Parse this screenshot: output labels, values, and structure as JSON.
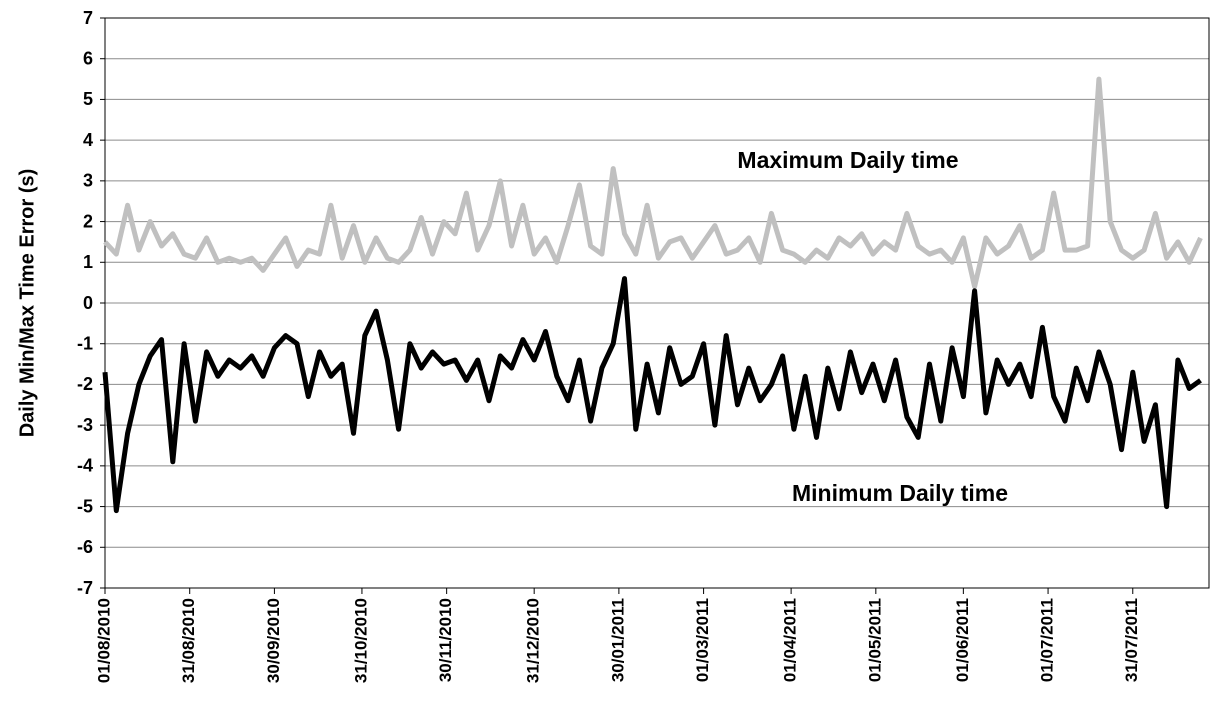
{
  "chart_data": {
    "type": "line",
    "y_label": "Daily Min/Max Time Error (s)",
    "xlim": [
      "01/08/2010",
      "27/08/2011"
    ],
    "xticks": [
      "01/08/2010",
      "31/08/2010",
      "30/09/2010",
      "31/10/2010",
      "30/11/2010",
      "31/12/2010",
      "30/01/2011",
      "01/03/2011",
      "01/04/2011",
      "01/05/2011",
      "01/06/2011",
      "01/07/2011",
      "31/07/2011"
    ],
    "ylim": [
      -7,
      7
    ],
    "yticks": [
      -7,
      -6,
      -5,
      -4,
      -3,
      -2,
      -1,
      0,
      1,
      2,
      3,
      4,
      5,
      6,
      7
    ],
    "grid": true,
    "x": [
      "01/08/2010",
      "05/08/2010",
      "09/08/2010",
      "13/08/2010",
      "17/08/2010",
      "21/08/2010",
      "25/08/2010",
      "29/08/2010",
      "02/09/2010",
      "06/09/2010",
      "10/09/2010",
      "14/09/2010",
      "18/09/2010",
      "22/09/2010",
      "26/09/2010",
      "30/09/2010",
      "04/10/2010",
      "08/10/2010",
      "12/10/2010",
      "16/10/2010",
      "20/10/2010",
      "24/10/2010",
      "28/10/2010",
      "01/11/2010",
      "05/11/2010",
      "09/11/2010",
      "13/11/2010",
      "17/11/2010",
      "21/11/2010",
      "25/11/2010",
      "29/11/2010",
      "03/12/2010",
      "07/12/2010",
      "11/12/2010",
      "15/12/2010",
      "19/12/2010",
      "23/12/2010",
      "27/12/2010",
      "31/12/2010",
      "04/01/2011",
      "08/01/2011",
      "12/01/2011",
      "16/01/2011",
      "20/01/2011",
      "24/01/2011",
      "28/01/2011",
      "01/02/2011",
      "05/02/2011",
      "09/02/2011",
      "13/02/2011",
      "17/02/2011",
      "21/02/2011",
      "25/02/2011",
      "01/03/2011",
      "05/03/2011",
      "09/03/2011",
      "13/03/2011",
      "17/03/2011",
      "21/03/2011",
      "25/03/2011",
      "29/03/2011",
      "02/04/2011",
      "06/04/2011",
      "10/04/2011",
      "14/04/2011",
      "18/04/2011",
      "22/04/2011",
      "26/04/2011",
      "30/04/2011",
      "04/05/2011",
      "08/05/2011",
      "12/05/2011",
      "16/05/2011",
      "20/05/2011",
      "24/05/2011",
      "28/05/2011",
      "01/06/2011",
      "05/06/2011",
      "09/06/2011",
      "13/06/2011",
      "17/06/2011",
      "21/06/2011",
      "25/06/2011",
      "29/06/2011",
      "03/07/2011",
      "07/07/2011",
      "11/07/2011",
      "15/07/2011",
      "19/07/2011",
      "23/07/2011",
      "27/07/2011",
      "31/07/2011",
      "04/08/2011",
      "08/08/2011",
      "12/08/2011",
      "16/08/2011",
      "20/08/2011",
      "24/08/2011"
    ],
    "series": [
      {
        "name": "Maximum Daily time",
        "color": "#c0c0c0",
        "values": [
          1.5,
          1.2,
          2.4,
          1.3,
          2.0,
          1.4,
          1.7,
          1.2,
          1.1,
          1.6,
          1.0,
          1.1,
          1.0,
          1.1,
          0.8,
          1.2,
          1.6,
          0.9,
          1.3,
          1.2,
          2.4,
          1.1,
          1.9,
          1.0,
          1.6,
          1.1,
          1.0,
          1.3,
          2.1,
          1.2,
          2.0,
          1.7,
          2.7,
          1.3,
          1.9,
          3.0,
          1.4,
          2.4,
          1.2,
          1.6,
          1.0,
          1.9,
          2.9,
          1.4,
          1.2,
          3.3,
          1.7,
          1.2,
          2.4,
          1.1,
          1.5,
          1.6,
          1.1,
          1.5,
          1.9,
          1.2,
          1.3,
          1.6,
          1.0,
          2.2,
          1.3,
          1.2,
          1.0,
          1.3,
          1.1,
          1.6,
          1.4,
          1.7,
          1.2,
          1.5,
          1.3,
          2.2,
          1.4,
          1.2,
          1.3,
          1.0,
          1.6,
          0.4,
          1.6,
          1.2,
          1.4,
          1.9,
          1.1,
          1.3,
          2.7,
          1.3,
          1.3,
          1.4,
          5.5,
          2.0,
          1.3,
          1.1,
          1.3,
          2.2,
          1.1,
          1.5,
          1.0,
          1.6
        ]
      },
      {
        "name": "Minimum Daily time",
        "color": "#000000",
        "values": [
          -1.7,
          -5.1,
          -3.2,
          -2.0,
          -1.3,
          -0.9,
          -3.9,
          -1.0,
          -2.9,
          -1.2,
          -1.8,
          -1.4,
          -1.6,
          -1.3,
          -1.8,
          -1.1,
          -0.8,
          -1.0,
          -2.3,
          -1.2,
          -1.8,
          -1.5,
          -3.2,
          -0.8,
          -0.2,
          -1.4,
          -3.1,
          -1.0,
          -1.6,
          -1.2,
          -1.5,
          -1.4,
          -1.9,
          -1.4,
          -2.4,
          -1.3,
          -1.6,
          -0.9,
          -1.4,
          -0.7,
          -1.8,
          -2.4,
          -1.4,
          -2.9,
          -1.6,
          -1.0,
          0.6,
          -3.1,
          -1.5,
          -2.7,
          -1.1,
          -2.0,
          -1.8,
          -1.0,
          -3.0,
          -0.8,
          -2.5,
          -1.6,
          -2.4,
          -2.0,
          -1.3,
          -3.1,
          -1.8,
          -3.3,
          -1.6,
          -2.6,
          -1.2,
          -2.2,
          -1.5,
          -2.4,
          -1.4,
          -2.8,
          -3.3,
          -1.5,
          -2.9,
          -1.1,
          -2.3,
          0.3,
          -2.7,
          -1.4,
          -2.0,
          -1.5,
          -2.3,
          -0.6,
          -2.3,
          -2.9,
          -1.6,
          -2.4,
          -1.2,
          -2.0,
          -3.6,
          -1.7,
          -3.4,
          -2.5,
          -5.0,
          -1.4,
          -2.1,
          -1.9
        ]
      }
    ]
  }
}
